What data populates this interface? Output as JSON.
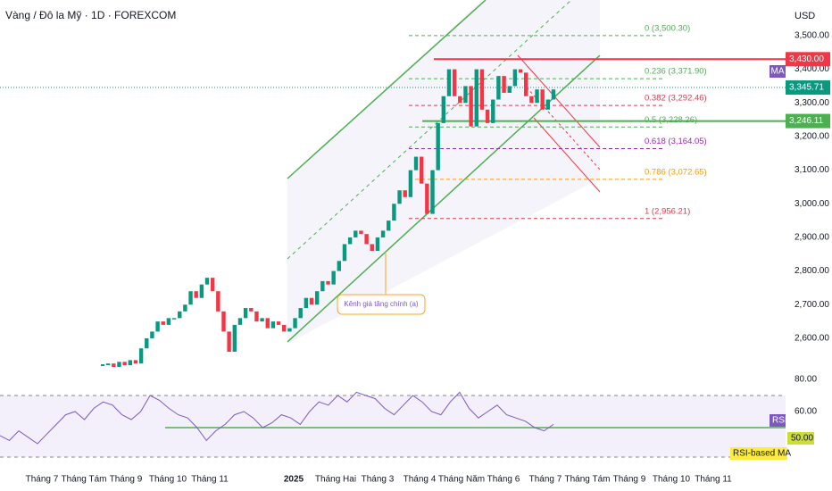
{
  "chart_data": {
    "type": "candlestick",
    "title": "Vàng / Đô la Mỹ · 1D · FOREXCOM",
    "currency": "USD",
    "categories": [
      "Tháng 7",
      "Tháng Tám",
      "Tháng 9",
      "Tháng 10",
      "Tháng 11",
      null,
      "2025",
      "Tháng Hai",
      "Tháng 3",
      "Tháng 4",
      "Tháng Năm",
      "Tháng 6",
      "Tháng 7",
      "Tháng Tám",
      "Tháng 9",
      "Tháng 10",
      "Tháng 11"
    ],
    "close": [
      2520,
      2525,
      2515,
      2530,
      2520,
      2535,
      2525,
      2570,
      2600,
      2620,
      2650,
      2640,
      2660,
      2660,
      2680,
      2700,
      2740,
      2720,
      2760,
      2780,
      2740,
      2680,
      2620,
      2560,
      2640,
      2660,
      2690,
      2680,
      2650,
      2660,
      2630,
      2650,
      2640,
      2620,
      2630,
      2660,
      2690,
      2720,
      2700,
      2740,
      2770,
      2760,
      2800,
      2830,
      2880,
      2900,
      2920,
      2910,
      2880,
      2860,
      2900,
      2920,
      2950,
      3000,
      3040,
      3020,
      3100,
      3140,
      3060,
      2970,
      3100,
      3240,
      3320,
      3400,
      3320,
      3300,
      3350,
      3230,
      3400,
      3280,
      3240,
      3310,
      3380,
      3330,
      3350,
      3400,
      3390,
      3320,
      3300,
      3340,
      3280,
      3310,
      3340
    ],
    "up_color": "#089981",
    "down_color": "#f23645",
    "ylim": [
      2491,
      3606
    ],
    "yticks": [
      {
        "value": 2600,
        "label": "2,600.00"
      },
      {
        "value": 2700,
        "label": "2,700.00"
      },
      {
        "value": 2800,
        "label": "2,800.00"
      },
      {
        "value": 2900,
        "label": "2,900.00"
      },
      {
        "value": 3000,
        "label": "3,000.00"
      },
      {
        "value": 3100,
        "label": "3,100.00"
      },
      {
        "value": 3200,
        "label": "3,200.00"
      },
      {
        "value": 3300,
        "label": "3,300.00"
      },
      {
        "value": 3400,
        "label": "3,400.00"
      },
      {
        "value": 3500,
        "label": "3,500.00"
      }
    ],
    "fib_levels": [
      {
        "value": 3500.3,
        "label": "0 (3,500.30)",
        "color": "#4caf50"
      },
      {
        "value": 3371.9,
        "label": "0.236 (3,371.90)",
        "color": "#4caf50"
      },
      {
        "value": 3292.46,
        "label": "0.382 (3,292.46)",
        "color": "#e0394f"
      },
      {
        "value": 3228.26,
        "label": "0.5 (3,228.26)",
        "color": "#4caf50"
      },
      {
        "value": 3164.05,
        "label": "0.618 (3,164.05)",
        "color": "#9c27b0"
      },
      {
        "value": 3072.65,
        "label": "0.786 (3,072.65)",
        "color": "#ff9800"
      },
      {
        "value": 2956.21,
        "label": "1 (2,956.21)",
        "color": "#e0394f"
      }
    ],
    "price_levels": [
      {
        "value": 3430.0,
        "label": "3,430.00",
        "color": "#f23645"
      },
      {
        "value": 3246.11,
        "label": "3,246.11",
        "color": "#4caf50"
      }
    ],
    "last_price": {
      "value": 3345.71,
      "label": "3,345.71",
      "color": "#089981"
    },
    "ma_label": "MA",
    "annotation": "Kênh giá tăng chính (a)",
    "rsi": {
      "name": "RSI",
      "ma_name": "RSI-based MA",
      "color": "#7e57c2",
      "values": [
        45,
        42,
        48,
        44,
        40,
        46,
        52,
        58,
        60,
        55,
        62,
        66,
        64,
        58,
        55,
        60,
        70,
        67,
        62,
        58,
        56,
        50,
        42,
        48,
        52,
        58,
        60,
        56,
        50,
        53,
        58,
        56,
        52,
        60,
        66,
        64,
        70,
        66,
        72,
        70,
        68,
        62,
        58,
        64,
        70,
        66,
        60,
        58,
        66,
        72,
        62,
        56,
        60,
        64,
        58,
        56,
        54,
        50,
        48,
        52
      ],
      "ylim": [
        28,
        86
      ],
      "yticks": [
        {
          "value": 60,
          "label": "60.00"
        },
        {
          "value": 80,
          "label": "80.00"
        }
      ],
      "level": {
        "value": 50,
        "label": "50.00"
      }
    }
  }
}
